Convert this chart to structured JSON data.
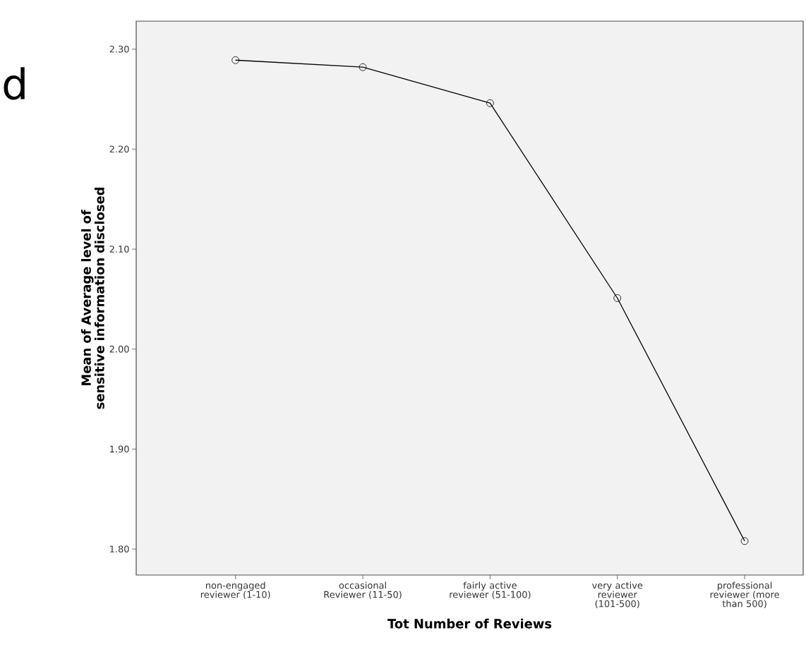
{
  "chart_data": {
    "type": "line",
    "xlabel": "Tot Number of Reviews",
    "ylabel": "Mean of Average level of sensitive information disclosed",
    "categories": [
      "non-engaged reviewer (1-10)",
      "occasional Reviewer (11-50)",
      "fairly active reviewer (51-100)",
      "very active reviewer (101-500)",
      "professional reviewer (more than 500)"
    ],
    "values": [
      2.289,
      2.282,
      2.246,
      2.051,
      1.808
    ],
    "color": "#000000",
    "marker": "circle",
    "line_style": "solid",
    "ylim": [
      1.774,
      2.328
    ],
    "yticks": [
      {
        "value": 1.8,
        "label": "1.80"
      },
      {
        "value": 1.9,
        "label": "1.90"
      },
      {
        "value": 2.0,
        "label": "2.00"
      },
      {
        "value": 2.1,
        "label": "2.10"
      },
      {
        "value": 2.2,
        "label": "2.20"
      },
      {
        "value": 2.3,
        "label": "2.30"
      }
    ],
    "annotations": [
      "d"
    ]
  }
}
